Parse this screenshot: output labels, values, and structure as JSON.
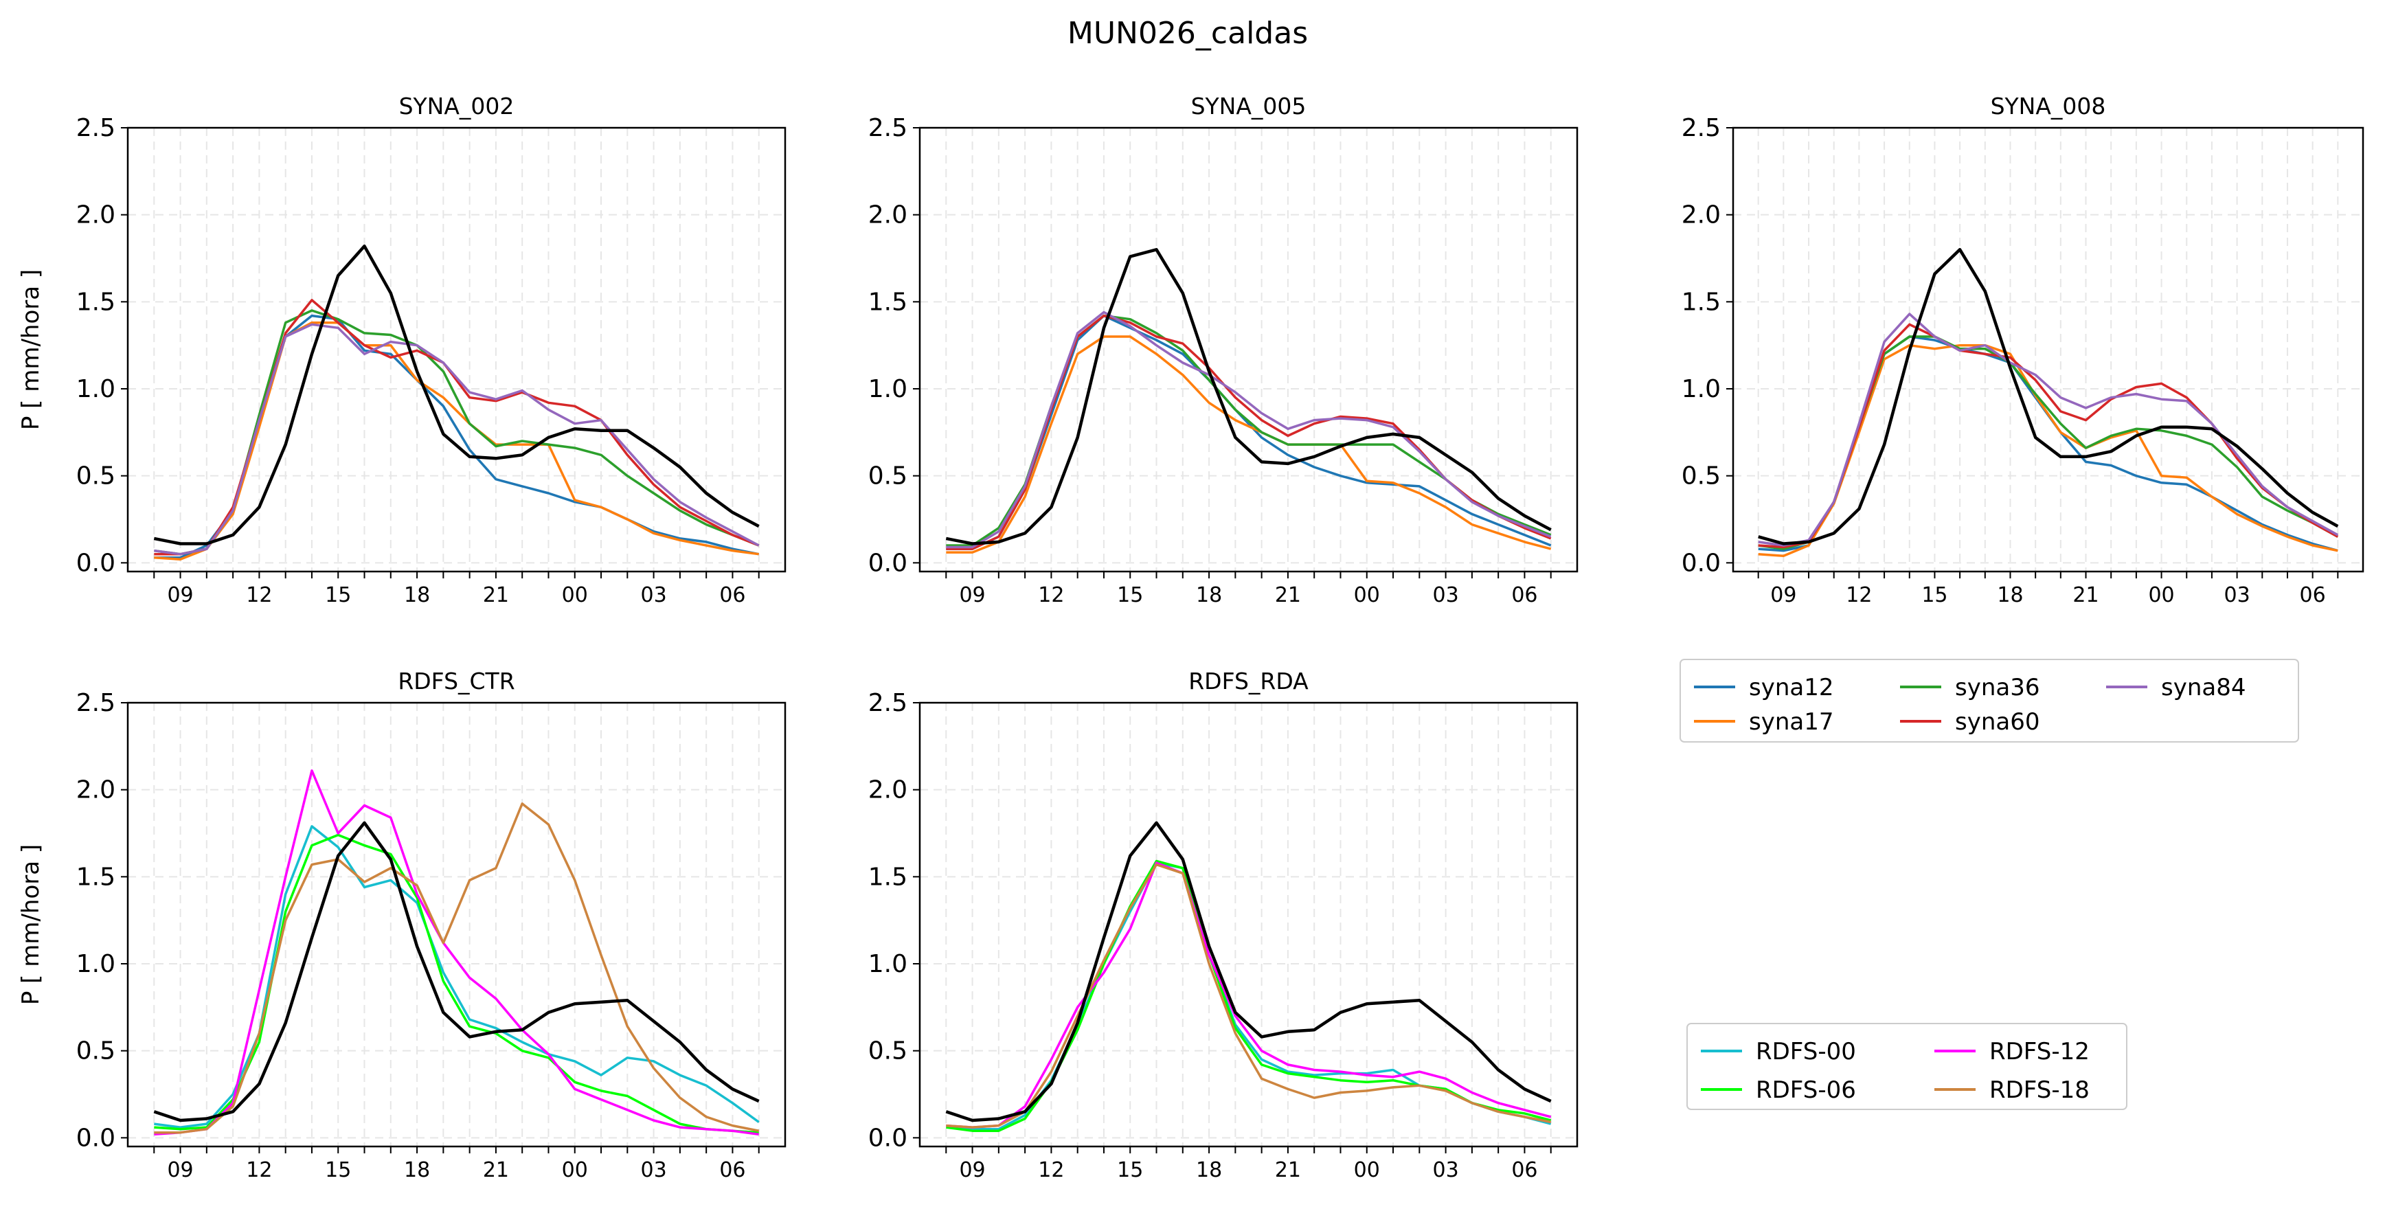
{
  "figure_title": "MUN026_caldas",
  "chart_data": [
    {
      "type": "line",
      "title": "SYNA_002",
      "ylabel": "P [ mm/hora ]",
      "ylim": [
        0,
        2.5
      ],
      "yticks": [
        "0.0",
        "0.5",
        "1.0",
        "1.5",
        "2.0",
        "2.5"
      ],
      "xtick_labels": [
        "09",
        "12",
        "15",
        "18",
        "21",
        "00",
        "03",
        "06"
      ],
      "grid": true,
      "x": [
        8,
        9,
        10,
        11,
        12,
        13,
        14,
        15,
        16,
        17,
        18,
        19,
        20,
        21,
        22,
        23,
        24,
        25,
        26,
        27,
        28,
        29,
        30,
        31
      ],
      "series": [
        {
          "name": "syna12",
          "color": "#1f77b4",
          "values": [
            0.03,
            0.03,
            0.1,
            0.3,
            0.8,
            1.3,
            1.42,
            1.4,
            1.22,
            1.2,
            1.05,
            0.9,
            0.65,
            0.48,
            0.44,
            0.4,
            0.35,
            0.32,
            0.25,
            0.18,
            0.14,
            0.12,
            0.08,
            0.05
          ]
        },
        {
          "name": "syna17",
          "color": "#ff7f0e",
          "values": [
            0.03,
            0.02,
            0.08,
            0.28,
            0.78,
            1.3,
            1.38,
            1.38,
            1.25,
            1.25,
            1.05,
            0.95,
            0.8,
            0.68,
            0.68,
            0.68,
            0.36,
            0.32,
            0.25,
            0.17,
            0.13,
            0.1,
            0.07,
            0.05
          ]
        },
        {
          "name": "syna36",
          "color": "#2ca02c",
          "values": [
            0.07,
            0.05,
            0.08,
            0.3,
            0.85,
            1.38,
            1.45,
            1.4,
            1.32,
            1.31,
            1.25,
            1.1,
            0.8,
            0.67,
            0.7,
            0.68,
            0.66,
            0.62,
            0.5,
            0.4,
            0.3,
            0.22,
            0.16,
            0.1
          ]
        },
        {
          "name": "syna60",
          "color": "#d62728",
          "values": [
            0.05,
            0.05,
            0.08,
            0.32,
            0.82,
            1.32,
            1.51,
            1.38,
            1.25,
            1.18,
            1.22,
            1.15,
            0.95,
            0.93,
            0.98,
            0.92,
            0.9,
            0.82,
            0.62,
            0.45,
            0.32,
            0.24,
            0.16,
            0.1
          ]
        },
        {
          "name": "syna84",
          "color": "#9467bd",
          "values": [
            0.07,
            0.05,
            0.08,
            0.3,
            0.82,
            1.3,
            1.37,
            1.35,
            1.2,
            1.27,
            1.25,
            1.15,
            0.98,
            0.94,
            0.99,
            0.88,
            0.8,
            0.82,
            0.65,
            0.48,
            0.35,
            0.26,
            0.18,
            0.1
          ]
        },
        {
          "name": "",
          "color": "#000000",
          "values": [
            0.14,
            0.11,
            0.11,
            0.16,
            0.32,
            0.68,
            1.2,
            1.65,
            1.82,
            1.55,
            1.1,
            0.74,
            0.61,
            0.6,
            0.62,
            0.72,
            0.77,
            0.76,
            0.76,
            0.66,
            0.55,
            0.4,
            0.29,
            0.21
          ]
        }
      ]
    },
    {
      "type": "line",
      "title": "SYNA_005",
      "ylabel": "",
      "ylim": [
        0,
        2.5
      ],
      "yticks": [
        "0.0",
        "0.5",
        "1.0",
        "1.5",
        "2.0",
        "2.5"
      ],
      "xtick_labels": [
        "09",
        "12",
        "15",
        "18",
        "21",
        "00",
        "03",
        "06"
      ],
      "grid": true,
      "x": [
        8,
        9,
        10,
        11,
        12,
        13,
        14,
        15,
        16,
        17,
        18,
        19,
        20,
        21,
        22,
        23,
        24,
        25,
        26,
        27,
        28,
        29,
        30,
        31
      ],
      "series": [
        {
          "name": "syna12",
          "color": "#1f77b4",
          "values": [
            0.08,
            0.08,
            0.15,
            0.42,
            0.85,
            1.28,
            1.42,
            1.35,
            1.28,
            1.2,
            1.05,
            0.88,
            0.72,
            0.62,
            0.55,
            0.5,
            0.46,
            0.45,
            0.44,
            0.36,
            0.28,
            0.22,
            0.16,
            0.1
          ]
        },
        {
          "name": "syna17",
          "color": "#ff7f0e",
          "values": [
            0.06,
            0.06,
            0.12,
            0.38,
            0.8,
            1.2,
            1.3,
            1.3,
            1.2,
            1.08,
            0.92,
            0.82,
            0.75,
            0.68,
            0.68,
            0.68,
            0.47,
            0.46,
            0.4,
            0.32,
            0.22,
            0.17,
            0.12,
            0.08
          ]
        },
        {
          "name": "syna36",
          "color": "#2ca02c",
          "values": [
            0.1,
            0.1,
            0.2,
            0.45,
            0.9,
            1.3,
            1.42,
            1.4,
            1.32,
            1.22,
            1.05,
            0.88,
            0.75,
            0.68,
            0.68,
            0.68,
            0.68,
            0.68,
            0.58,
            0.48,
            0.36,
            0.28,
            0.22,
            0.16
          ]
        },
        {
          "name": "syna60",
          "color": "#d62728",
          "values": [
            0.08,
            0.08,
            0.15,
            0.42,
            0.88,
            1.3,
            1.42,
            1.38,
            1.3,
            1.26,
            1.12,
            0.95,
            0.82,
            0.73,
            0.8,
            0.84,
            0.83,
            0.8,
            0.65,
            0.48,
            0.36,
            0.27,
            0.2,
            0.14
          ]
        },
        {
          "name": "syna84",
          "color": "#9467bd",
          "values": [
            0.09,
            0.09,
            0.18,
            0.44,
            0.9,
            1.32,
            1.44,
            1.36,
            1.25,
            1.15,
            1.08,
            0.98,
            0.86,
            0.77,
            0.82,
            0.83,
            0.82,
            0.78,
            0.64,
            0.48,
            0.35,
            0.27,
            0.21,
            0.15
          ]
        },
        {
          "name": "",
          "color": "#000000",
          "values": [
            0.14,
            0.11,
            0.12,
            0.17,
            0.32,
            0.72,
            1.35,
            1.76,
            1.8,
            1.55,
            1.1,
            0.72,
            0.58,
            0.57,
            0.61,
            0.67,
            0.72,
            0.74,
            0.72,
            0.62,
            0.52,
            0.37,
            0.27,
            0.19
          ]
        }
      ]
    },
    {
      "type": "line",
      "title": "SYNA_008",
      "ylabel": "",
      "ylim": [
        0,
        2.5
      ],
      "yticks": [
        "0.0",
        "0.5",
        "1.0",
        "1.5",
        "2.0",
        "2.5"
      ],
      "xtick_labels": [
        "09",
        "12",
        "15",
        "18",
        "21",
        "00",
        "03",
        "06"
      ],
      "grid": true,
      "x": [
        8,
        9,
        10,
        11,
        12,
        13,
        14,
        15,
        16,
        17,
        18,
        19,
        20,
        21,
        22,
        23,
        24,
        25,
        26,
        27,
        28,
        29,
        30,
        31
      ],
      "series": [
        {
          "name": "syna12",
          "color": "#1f77b4",
          "values": [
            0.08,
            0.07,
            0.1,
            0.35,
            0.78,
            1.2,
            1.3,
            1.28,
            1.23,
            1.2,
            1.15,
            0.95,
            0.75,
            0.58,
            0.56,
            0.5,
            0.46,
            0.45,
            0.38,
            0.3,
            0.22,
            0.16,
            0.11,
            0.07
          ]
        },
        {
          "name": "syna17",
          "color": "#ff7f0e",
          "values": [
            0.05,
            0.04,
            0.1,
            0.34,
            0.75,
            1.17,
            1.25,
            1.23,
            1.25,
            1.25,
            1.2,
            0.96,
            0.75,
            0.66,
            0.72,
            0.76,
            0.5,
            0.49,
            0.38,
            0.28,
            0.21,
            0.15,
            0.1,
            0.07
          ]
        },
        {
          "name": "syna36",
          "color": "#2ca02c",
          "values": [
            0.1,
            0.08,
            0.12,
            0.35,
            0.78,
            1.2,
            1.3,
            1.3,
            1.23,
            1.23,
            1.15,
            0.97,
            0.8,
            0.66,
            0.73,
            0.77,
            0.76,
            0.73,
            0.68,
            0.55,
            0.38,
            0.3,
            0.23,
            0.15
          ]
        },
        {
          "name": "syna60",
          "color": "#d62728",
          "values": [
            0.1,
            0.09,
            0.12,
            0.35,
            0.78,
            1.22,
            1.37,
            1.3,
            1.22,
            1.2,
            1.18,
            1.05,
            0.87,
            0.82,
            0.94,
            1.01,
            1.03,
            0.95,
            0.8,
            0.6,
            0.43,
            0.32,
            0.23,
            0.15
          ]
        },
        {
          "name": "syna84",
          "color": "#9467bd",
          "values": [
            0.12,
            0.1,
            0.13,
            0.35,
            0.8,
            1.27,
            1.43,
            1.3,
            1.22,
            1.25,
            1.15,
            1.08,
            0.95,
            0.89,
            0.95,
            0.97,
            0.94,
            0.93,
            0.8,
            0.62,
            0.44,
            0.32,
            0.24,
            0.16
          ]
        },
        {
          "name": "",
          "color": "#000000",
          "values": [
            0.15,
            0.11,
            0.12,
            0.17,
            0.31,
            0.68,
            1.22,
            1.66,
            1.8,
            1.56,
            1.12,
            0.72,
            0.61,
            0.61,
            0.64,
            0.73,
            0.78,
            0.78,
            0.77,
            0.67,
            0.54,
            0.4,
            0.29,
            0.21
          ]
        }
      ]
    },
    {
      "type": "line",
      "title": "RDFS_CTR",
      "ylabel": "P [ mm/hora ]",
      "ylim": [
        0,
        2.5
      ],
      "yticks": [
        "0.0",
        "0.5",
        "1.0",
        "1.5",
        "2.0",
        "2.5"
      ],
      "xtick_labels": [
        "09",
        "12",
        "15",
        "18",
        "21",
        "00",
        "03",
        "06"
      ],
      "grid": true,
      "x": [
        8,
        9,
        10,
        11,
        12,
        13,
        14,
        15,
        16,
        17,
        18,
        19,
        20,
        21,
        22,
        23,
        24,
        25,
        26,
        27,
        28,
        29,
        30,
        31
      ],
      "series": [
        {
          "name": "RDFS-00",
          "color": "#17becf",
          "values": [
            0.08,
            0.06,
            0.08,
            0.25,
            0.6,
            1.4,
            1.79,
            1.67,
            1.44,
            1.48,
            1.35,
            0.95,
            0.68,
            0.63,
            0.55,
            0.48,
            0.44,
            0.36,
            0.46,
            0.44,
            0.36,
            0.3,
            0.2,
            0.09
          ]
        },
        {
          "name": "RDFS-06",
          "color": "#00ff00",
          "values": [
            0.06,
            0.05,
            0.06,
            0.22,
            0.55,
            1.3,
            1.68,
            1.74,
            1.68,
            1.63,
            1.38,
            0.9,
            0.64,
            0.6,
            0.5,
            0.46,
            0.32,
            0.27,
            0.24,
            0.16,
            0.08,
            0.05,
            0.04,
            0.03
          ]
        },
        {
          "name": "RDFS-12",
          "color": "#ff00ff",
          "values": [
            0.02,
            0.03,
            0.05,
            0.2,
            0.85,
            1.5,
            2.11,
            1.75,
            1.91,
            1.84,
            1.4,
            1.12,
            0.92,
            0.8,
            0.62,
            0.48,
            0.28,
            0.22,
            0.16,
            0.1,
            0.06,
            0.05,
            0.04,
            0.02
          ]
        },
        {
          "name": "RDFS-18",
          "color": "#cd853f",
          "values": [
            0.03,
            0.03,
            0.05,
            0.18,
            0.6,
            1.25,
            1.57,
            1.6,
            1.47,
            1.55,
            1.45,
            1.12,
            1.48,
            1.55,
            1.92,
            1.8,
            1.48,
            1.05,
            0.64,
            0.4,
            0.23,
            0.12,
            0.07,
            0.04
          ]
        },
        {
          "name": "",
          "color": "#000000",
          "values": [
            0.15,
            0.1,
            0.11,
            0.15,
            0.31,
            0.66,
            1.15,
            1.62,
            1.81,
            1.6,
            1.1,
            0.72,
            0.58,
            0.61,
            0.62,
            0.72,
            0.77,
            0.78,
            0.79,
            0.67,
            0.55,
            0.39,
            0.28,
            0.21
          ]
        }
      ]
    },
    {
      "type": "line",
      "title": "RDFS_RDA",
      "ylabel": "",
      "ylim": [
        0,
        2.5
      ],
      "yticks": [
        "0.0",
        "0.5",
        "1.0",
        "1.5",
        "2.0",
        "2.5"
      ],
      "xtick_labels": [
        "09",
        "12",
        "15",
        "18",
        "21",
        "00",
        "03",
        "06"
      ],
      "grid": true,
      "x": [
        8,
        9,
        10,
        11,
        12,
        13,
        14,
        15,
        16,
        17,
        18,
        19,
        20,
        21,
        22,
        23,
        24,
        25,
        26,
        27,
        28,
        29,
        30,
        31
      ],
      "series": [
        {
          "name": "RDFS-00",
          "color": "#17becf",
          "values": [
            0.07,
            0.05,
            0.05,
            0.13,
            0.33,
            0.65,
            1.0,
            1.3,
            1.58,
            1.55,
            1.05,
            0.65,
            0.45,
            0.38,
            0.36,
            0.37,
            0.37,
            0.39,
            0.3,
            0.28,
            0.2,
            0.15,
            0.12,
            0.08
          ]
        },
        {
          "name": "RDFS-06",
          "color": "#00ff00",
          "values": [
            0.06,
            0.04,
            0.04,
            0.11,
            0.32,
            0.62,
            1.0,
            1.33,
            1.59,
            1.55,
            1.05,
            0.63,
            0.42,
            0.37,
            0.35,
            0.33,
            0.32,
            0.33,
            0.3,
            0.28,
            0.2,
            0.16,
            0.14,
            0.1
          ]
        },
        {
          "name": "RDFS-12",
          "color": "#ff00ff",
          "values": [
            0.07,
            0.06,
            0.07,
            0.18,
            0.45,
            0.75,
            0.95,
            1.2,
            1.58,
            1.52,
            1.05,
            0.7,
            0.5,
            0.42,
            0.39,
            0.38,
            0.36,
            0.35,
            0.38,
            0.34,
            0.26,
            0.2,
            0.16,
            0.12
          ]
        },
        {
          "name": "RDFS-18",
          "color": "#cd853f",
          "values": [
            0.07,
            0.06,
            0.07,
            0.15,
            0.38,
            0.7,
            1.02,
            1.32,
            1.57,
            1.52,
            1.0,
            0.6,
            0.34,
            0.28,
            0.23,
            0.26,
            0.27,
            0.29,
            0.3,
            0.27,
            0.2,
            0.15,
            0.12,
            0.09
          ]
        },
        {
          "name": "",
          "color": "#000000",
          "values": [
            0.15,
            0.1,
            0.11,
            0.15,
            0.31,
            0.66,
            1.15,
            1.62,
            1.81,
            1.6,
            1.1,
            0.72,
            0.58,
            0.61,
            0.62,
            0.72,
            0.77,
            0.78,
            0.79,
            0.67,
            0.55,
            0.39,
            0.28,
            0.21
          ]
        }
      ]
    }
  ],
  "legends": [
    {
      "entries": [
        {
          "name": "syna12",
          "color": "#1f77b4"
        },
        {
          "name": "syna17",
          "color": "#ff7f0e"
        },
        {
          "name": "syna36",
          "color": "#2ca02c"
        },
        {
          "name": "syna60",
          "color": "#d62728"
        },
        {
          "name": "syna84",
          "color": "#9467bd"
        }
      ]
    },
    {
      "entries": [
        {
          "name": "RDFS-00",
          "color": "#17becf"
        },
        {
          "name": "RDFS-06",
          "color": "#00ff00"
        },
        {
          "name": "RDFS-12",
          "color": "#ff00ff"
        },
        {
          "name": "RDFS-18",
          "color": "#cd853f"
        }
      ]
    }
  ]
}
